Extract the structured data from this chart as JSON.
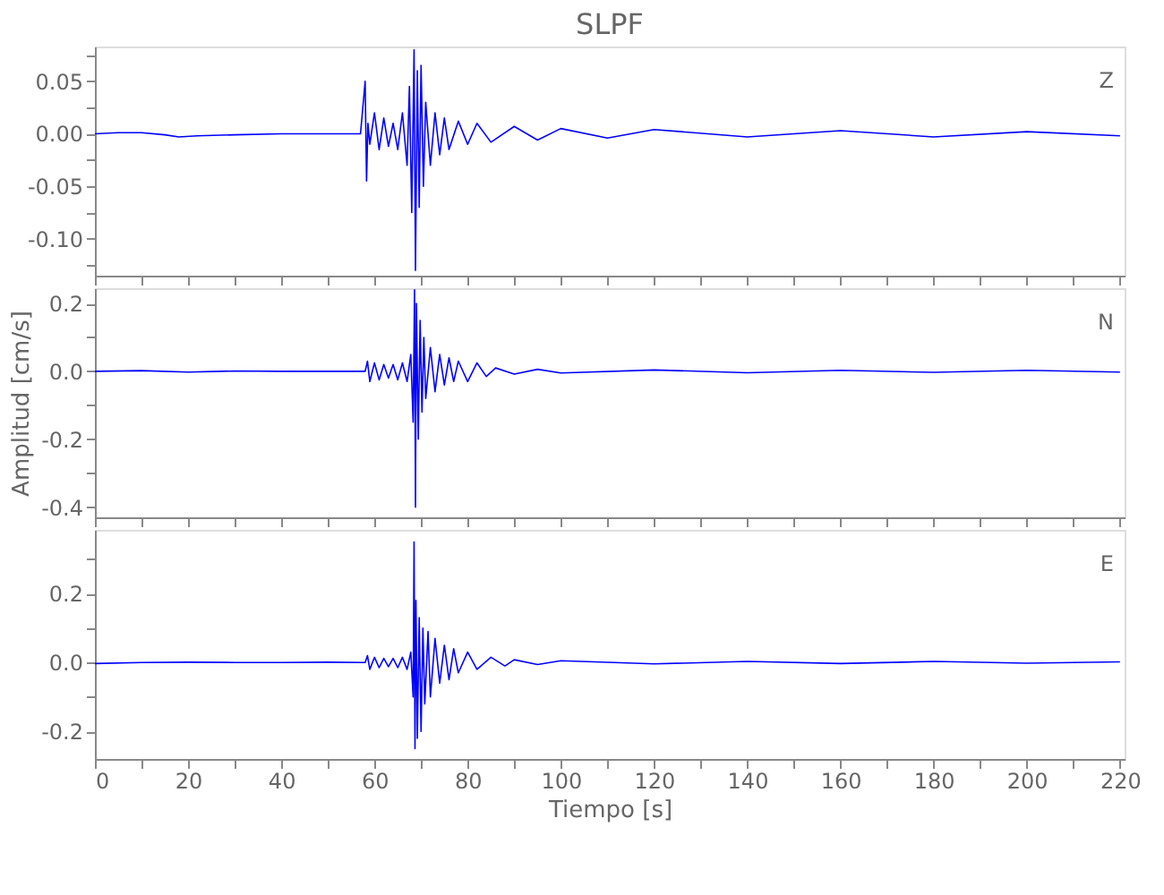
{
  "chart_data": [
    {
      "type": "line",
      "title": "SLPF",
      "annotations": [
        "Z"
      ],
      "tick_labels": "y",
      "grid": false,
      "xlim": [
        0,
        221
      ],
      "xticks": [
        0,
        10,
        20,
        30,
        40,
        50,
        60,
        70,
        80,
        90,
        100,
        110,
        120,
        130,
        140,
        150,
        160,
        170,
        180,
        190,
        200,
        210,
        220
      ],
      "ylim": [
        -0.135,
        0.083
      ],
      "yticks": [
        {
          "value": 0.075,
          "label": null
        },
        0.05,
        {
          "value": 0.025,
          "label": null
        },
        {
          "value": 0,
          "label": "0.00"
        },
        {
          "value": -0.025,
          "label": null
        },
        -0.05,
        {
          "value": -0.075,
          "label": null
        },
        {
          "value": -0.1,
          "label": "-0.10"
        },
        {
          "value": -0.125,
          "label": null
        }
      ],
      "series": [
        {
          "color": "#0000ff",
          "x": [
            0,
            5,
            10,
            15,
            18,
            22,
            30,
            40,
            50,
            57,
            58,
            58.3,
            58.6,
            59,
            60,
            61,
            62,
            63,
            64,
            65,
            66,
            67,
            67.5,
            68,
            68.5,
            68.8,
            69.2,
            69.6,
            70,
            70.5,
            71,
            72,
            73,
            74,
            75,
            76,
            78,
            80,
            82,
            85,
            90,
            95,
            100,
            110,
            120,
            140,
            160,
            180,
            200,
            220
          ],
          "values": [
            0,
            0.001,
            0.001,
            -0.001,
            -0.003,
            -0.002,
            -0.001,
            0,
            0,
            0,
            0.05,
            -0.045,
            0.01,
            -0.01,
            0.02,
            -0.015,
            0.015,
            -0.012,
            0.01,
            -0.015,
            0.02,
            -0.03,
            0.045,
            -0.075,
            0.08,
            -0.13,
            0.06,
            -0.07,
            0.065,
            -0.05,
            0.03,
            -0.03,
            0.02,
            -0.02,
            0.015,
            -0.015,
            0.012,
            -0.01,
            0.01,
            -0.008,
            0.007,
            -0.006,
            0.005,
            -0.004,
            0.004,
            -0.003,
            0.003,
            -0.003,
            0.002,
            -0.002
          ]
        }
      ]
    },
    {
      "type": "line",
      "ylabel": "Amplitud [cm/s]",
      "annotations": [
        "N"
      ],
      "tick_labels": "y",
      "grid": false,
      "xlim": [
        0,
        221
      ],
      "xticks": [
        0,
        10,
        20,
        30,
        40,
        50,
        60,
        70,
        80,
        90,
        100,
        110,
        120,
        130,
        140,
        150,
        160,
        170,
        180,
        190,
        200,
        210,
        220
      ],
      "ylim": [
        -0.43,
        0.245
      ],
      "yticks": [
        0.2,
        {
          "value": 0.1,
          "label": null
        },
        {
          "value": 0,
          "label": "0.0"
        },
        {
          "value": -0.1,
          "label": null
        },
        -0.2,
        {
          "value": -0.3,
          "label": null
        },
        -0.4
      ],
      "series": [
        {
          "color": "#0000ff",
          "x": [
            0,
            10,
            20,
            30,
            40,
            50,
            58,
            58.5,
            59,
            60,
            61,
            62,
            63,
            64,
            65,
            66,
            67,
            67.8,
            68.3,
            68.6,
            68.8,
            69,
            69.4,
            69.8,
            70.2,
            70.6,
            71,
            72,
            73,
            74,
            75,
            76,
            77,
            78,
            80,
            82,
            84,
            86,
            90,
            95,
            100,
            120,
            140,
            160,
            180,
            200,
            220
          ],
          "values": [
            0,
            0.002,
            -0.002,
            0.001,
            0,
            0,
            0,
            0.03,
            -0.03,
            0.025,
            -0.025,
            0.02,
            -0.02,
            0.02,
            -0.025,
            0.025,
            -0.03,
            0.05,
            -0.15,
            0.24,
            -0.4,
            0.2,
            -0.2,
            0.15,
            -0.12,
            0.1,
            -0.08,
            0.07,
            -0.06,
            0.05,
            -0.04,
            0.04,
            -0.03,
            0.03,
            -0.03,
            0.025,
            -0.015,
            0.01,
            -0.008,
            0.006,
            -0.005,
            0.004,
            -0.004,
            0.003,
            -0.003,
            0.003,
            -0.002
          ]
        }
      ]
    },
    {
      "type": "line",
      "xlabel": "Tiempo [s]",
      "annotations": [
        "E"
      ],
      "grid": false,
      "xlim": [
        0,
        221
      ],
      "xticks": [
        0,
        {
          "value": 10,
          "label": null
        },
        20,
        {
          "value": 30,
          "label": null
        },
        40,
        {
          "value": 50,
          "label": null
        },
        60,
        {
          "value": 70,
          "label": null
        },
        80,
        {
          "value": 90,
          "label": null
        },
        100,
        {
          "value": 110,
          "label": null
        },
        120,
        {
          "value": 130,
          "label": null
        },
        140,
        {
          "value": 150,
          "label": null
        },
        160,
        {
          "value": 170,
          "label": null
        },
        180,
        {
          "value": 190,
          "label": null
        },
        200,
        {
          "value": 210,
          "label": null
        },
        220
      ],
      "ylim": [
        -0.28,
        0.385
      ],
      "yticks": [
        {
          "value": 0.3,
          "label": null
        },
        0.2,
        {
          "value": 0.1,
          "label": null
        },
        {
          "value": 0,
          "label": "0.0"
        },
        {
          "value": -0.1,
          "label": null
        },
        -0.2
      ],
      "series": [
        {
          "color": "#0000ff",
          "x": [
            0,
            10,
            20,
            30,
            40,
            50,
            58,
            58.5,
            59,
            60,
            61,
            62,
            63,
            64,
            65,
            66,
            67,
            67.8,
            68.3,
            68.5,
            68.7,
            68.9,
            69.2,
            69.6,
            70,
            70.4,
            70.8,
            71.5,
            72,
            73,
            74,
            75,
            76,
            77,
            78,
            80,
            82,
            85,
            88,
            90,
            95,
            100,
            120,
            140,
            160,
            180,
            200,
            220
          ],
          "values": [
            -0.003,
            0,
            0.001,
            0,
            0,
            0.001,
            0,
            0.02,
            -0.02,
            0.015,
            -0.015,
            0.012,
            -0.012,
            0.012,
            -0.015,
            0.015,
            -0.02,
            0.03,
            -0.1,
            0.35,
            -0.25,
            0.18,
            -0.22,
            0.13,
            -0.2,
            0.1,
            -0.12,
            0.09,
            -0.1,
            0.07,
            -0.06,
            0.05,
            -0.05,
            0.04,
            -0.03,
            0.03,
            -0.02,
            0.015,
            -0.01,
            0.008,
            -0.006,
            0.005,
            -0.004,
            0.003,
            -0.003,
            0.003,
            -0.002,
            0.002
          ]
        }
      ]
    }
  ]
}
